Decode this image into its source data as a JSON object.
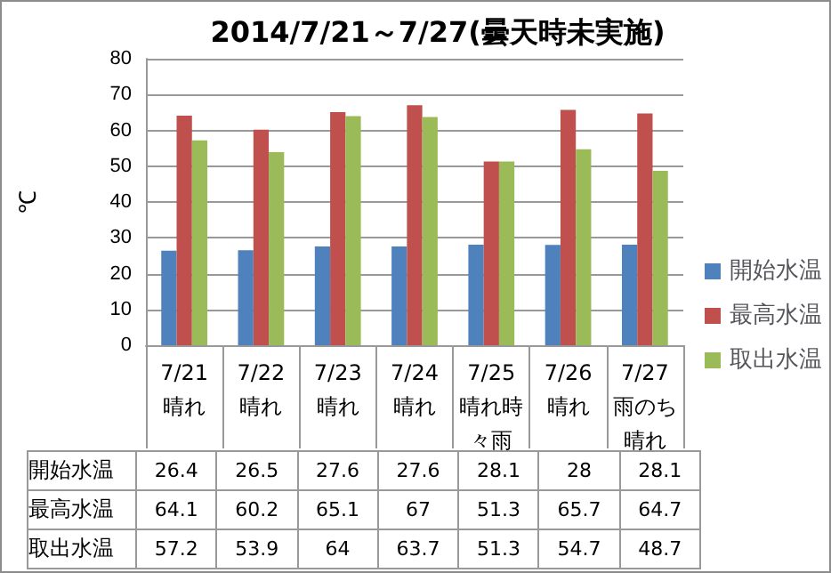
{
  "chart_data": {
    "type": "bar",
    "title": "2014/7/21～7/27(曇天時未実施)",
    "ylabel": "℃",
    "categories": [
      "7/21\n晴れ",
      "7/22\n晴れ",
      "7/23\n晴れ",
      "7/24\n晴れ",
      "7/25\n晴れ時々雨",
      "7/26\n晴れ",
      "7/27\n雨のち晴れ"
    ],
    "series": [
      {
        "name": "開始水温",
        "color": "#4f81bd",
        "values": [
          26.4,
          26.5,
          27.6,
          27.6,
          28.1,
          28,
          28.1
        ]
      },
      {
        "name": "最高水温",
        "color": "#c0504d",
        "values": [
          64.1,
          60.2,
          65.1,
          67,
          51.3,
          65.7,
          64.7
        ]
      },
      {
        "name": "取出水温",
        "color": "#9bbb59",
        "values": [
          57.2,
          53.9,
          64,
          63.7,
          51.3,
          54.7,
          48.7
        ]
      }
    ],
    "ylim": [
      0,
      80
    ],
    "yticks": [
      0,
      10,
      20,
      30,
      40,
      50,
      60,
      70,
      80
    ],
    "grid": "y",
    "legend": "right",
    "data_labels": true
  }
}
